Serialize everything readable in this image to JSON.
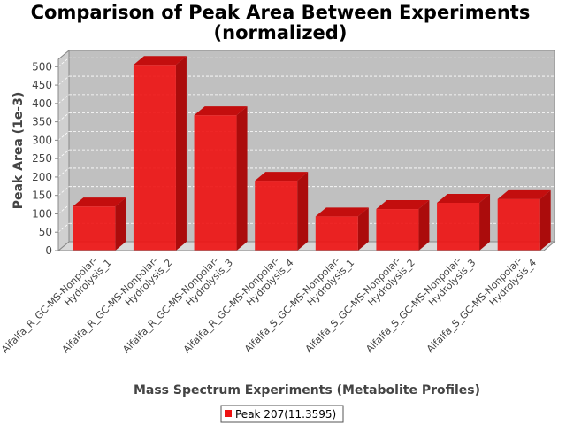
{
  "chart_data": {
    "type": "bar",
    "title_lines": [
      "Comparison of Peak Area Between Experiments",
      "(normalized)"
    ],
    "xlabel": "Mass Spectrum Experiments (Metabolite Profiles)",
    "ylabel": "Peak Area (1e-3)",
    "categories": [
      [
        "Alfalfa_R_GC-MS-Nonpolar-",
        "Hydrolysis_1"
      ],
      [
        "Alfalfa_R_GC-MS-Nonpolar-",
        "Hydrolysis_2"
      ],
      [
        "Alfalfa_R_GC-MS-Nonpolar-",
        "Hydrolysis_3"
      ],
      [
        "Alfalfa_R_GC-MS-Nonpolar-",
        "Hydrolysis_4"
      ],
      [
        "Alfalfa_S_GC-MS-Nonpolar-",
        "Hydrolysis_1"
      ],
      [
        "Alfalfa_S_GC-MS-Nonpolar-",
        "Hydrolysis_2"
      ],
      [
        "Alfalfa_S_GC-MS-Nonpolar-",
        "Hydrolysis_3"
      ],
      [
        "Alfalfa_S_GC-MS-Nonpolar-",
        "Hydrolysis_4"
      ]
    ],
    "series": [
      {
        "name": "Peak 207(11.3595)",
        "color": "#ee1111",
        "values": [
          120,
          505,
          368,
          190,
          93,
          113,
          130,
          140
        ]
      }
    ],
    "ylim": [
      0,
      520
    ],
    "yticks": [
      0,
      50,
      100,
      150,
      200,
      250,
      300,
      350,
      400,
      450,
      500
    ],
    "grid": true,
    "legend_position": "bottom-center",
    "plot_background": "#c0c0c0"
  }
}
